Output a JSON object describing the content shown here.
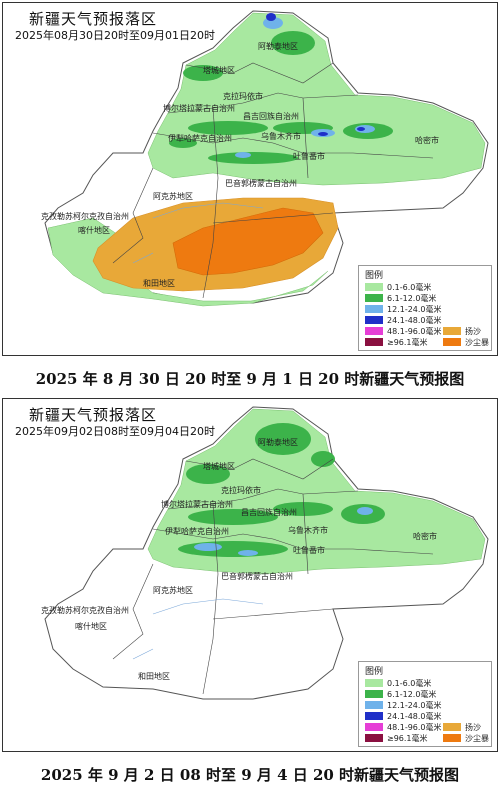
{
  "panels": [
    {
      "title": "新疆天气预报落区",
      "period": "2025年08月30日20时至09月01日20时",
      "caption": "2025 年 8 月 30 日 20 时至 9 月 1 日 20 时新疆天气预报图",
      "regions": [
        "阿勒泰地区",
        "塔城地区",
        "克拉玛依市",
        "博尔塔拉蒙古自治州",
        "伊犁哈萨克自治州",
        "昌吉回族自治州",
        "乌鲁木齐市",
        "吐鲁番市",
        "哈密市",
        "巴音郭楞蒙古自治州",
        "阿克苏地区",
        "克孜勒苏柯尔克孜自治州",
        "喀什地区",
        "和田地区"
      ],
      "phenomena": [
        "降水",
        "扬沙",
        "沙尘暴"
      ]
    },
    {
      "title": "新疆天气预报落区",
      "period": "2025年09月02日08时至09月04日20时",
      "caption": "2025 年 9 月 2 日 08 时至 9 月 4 日 20 时新疆天气预报图",
      "regions": [
        "阿勒泰地区",
        "塔城地区",
        "克拉玛依市",
        "博尔塔拉蒙古自治州",
        "伊犁哈萨克自治州",
        "昌吉回族自治州",
        "乌鲁木齐市",
        "吐鲁番市",
        "哈密市",
        "巴音郭楞蒙古自治州",
        "阿克苏地区",
        "克孜勒苏柯尔克孜自治州",
        "喀什地区",
        "和田地区"
      ],
      "phenomena": [
        "降水"
      ]
    }
  ],
  "legend": {
    "title": "图例",
    "precip": [
      {
        "label": "0.1-6.0毫米",
        "color": "#a8e8a0"
      },
      {
        "label": "6.1-12.0毫米",
        "color": "#3cb34a"
      },
      {
        "label": "12.1-24.0毫米",
        "color": "#6fb2ea"
      },
      {
        "label": "24.1-48.0毫米",
        "color": "#1f2fc8"
      },
      {
        "label": "48.1-96.0毫米",
        "color": "#e63ed6"
      },
      {
        "label": "≥96.1毫米",
        "color": "#8a1040"
      }
    ],
    "dust": [
      {
        "label": "扬沙",
        "color": "#e8a838"
      },
      {
        "label": "沙尘暴",
        "color": "#ee7a10"
      }
    ]
  }
}
